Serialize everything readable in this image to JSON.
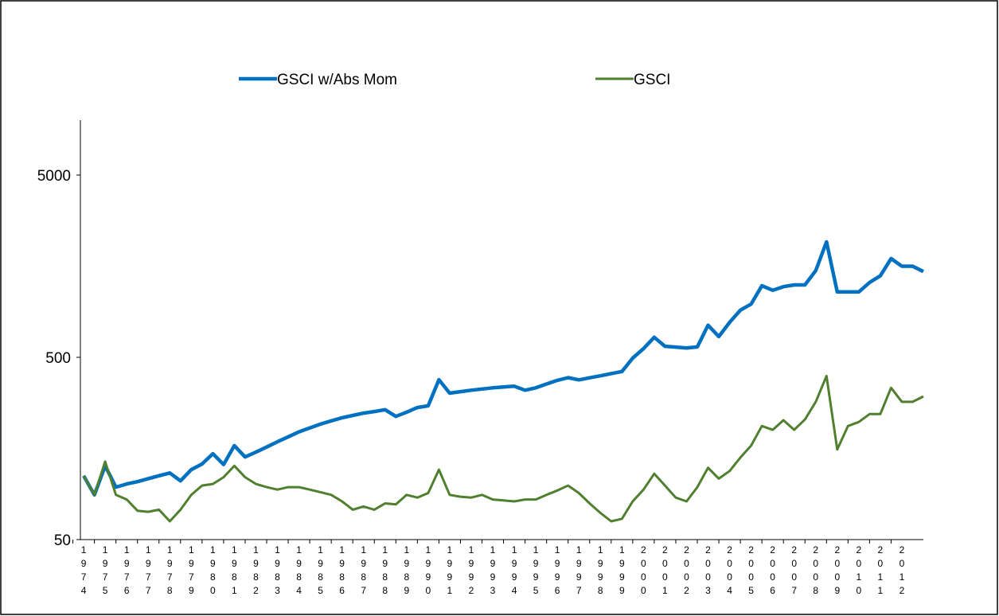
{
  "chart_data": {
    "type": "line",
    "log_scale": true,
    "grid": false,
    "legend": "top",
    "x": [
      1974,
      1974.5,
      1975,
      1975.5,
      1976,
      1976.5,
      1977,
      1977.5,
      1978,
      1978.5,
      1979,
      1979.5,
      1980,
      1980.5,
      1981,
      1981.5,
      1982,
      1982.5,
      1983,
      1983.5,
      1984,
      1984.5,
      1985,
      1985.5,
      1986,
      1986.5,
      1987,
      1987.5,
      1988,
      1988.5,
      1989,
      1989.5,
      1990,
      1990.5,
      1991,
      1991.5,
      1992,
      1992.5,
      1993,
      1993.5,
      1994,
      1994.5,
      1995,
      1995.5,
      1996,
      1996.5,
      1997,
      1997.5,
      1998,
      1998.5,
      1999,
      1999.5,
      2000,
      2000.5,
      2001,
      2001.5,
      2002,
      2002.5,
      2003,
      2003.5,
      2004,
      2004.5,
      2005,
      2005.5,
      2006,
      2006.5,
      2007,
      2007.5,
      2008,
      2008.5,
      2009,
      2009.5,
      2010,
      2010.5,
      2011,
      2011.5,
      2012,
      2012.5,
      2013
    ],
    "series": [
      {
        "name": "GSCI w/Abs Mom",
        "color": "#0070c0",
        "values": [
          112,
          88,
          127,
          97,
          101,
          104,
          108,
          112,
          116,
          105,
          121,
          130,
          148,
          129,
          164,
          142,
          151,
          161,
          172,
          183,
          195,
          205,
          215,
          224,
          233,
          240,
          247,
          252,
          258,
          237,
          250,
          265,
          271,
          377,
          318,
          324,
          330,
          335,
          340,
          344,
          347,
          330,
          340,
          357,
          374,
          387,
          376,
          386,
          396,
          407,
          418,
          495,
          558,
          644,
          575,
          569,
          563,
          570,
          750,
          650,
          778,
          907,
          979,
          1235,
          1167,
          1220,
          1248,
          1248,
          1495,
          2150,
          1142,
          1142,
          1142,
          1287,
          1400,
          1740,
          1580,
          1580,
          1478
        ]
      },
      {
        "name": "GSCI",
        "color": "#4f7f2f",
        "values": [
          112,
          88,
          134,
          88,
          83,
          72,
          71,
          73,
          63,
          73,
          88,
          99,
          101,
          110,
          127,
          110,
          101,
          97,
          94,
          97,
          97,
          94,
          91,
          88,
          81,
          73,
          76,
          73,
          79,
          78,
          88,
          85,
          90,
          121,
          88,
          86,
          85,
          88,
          83,
          82,
          81,
          83,
          83,
          88,
          93,
          99,
          90,
          79,
          70,
          63,
          65,
          81,
          94,
          115,
          99,
          85,
          81,
          97,
          124,
          108,
          119,
          141,
          164,
          210,
          200,
          226,
          200,
          228,
          285,
          395,
          156,
          210,
          221,
          244,
          244,
          340,
          285,
          285,
          305
        ]
      }
    ],
    "xlim": [
      1973.85,
      2013
    ],
    "xticks": [
      1974,
      1975,
      1976,
      1977,
      1978,
      1979,
      1980,
      1981,
      1982,
      1983,
      1984,
      1985,
      1986,
      1987,
      1988,
      1989,
      1990,
      1991,
      1992,
      1993,
      1994,
      1995,
      1996,
      1997,
      1998,
      1999,
      2000,
      2001,
      2002,
      2003,
      2004,
      2005,
      2006,
      2007,
      2008,
      2009,
      2010,
      2011,
      2012
    ],
    "ylim": [
      50,
      10000
    ],
    "yticks": [
      50,
      500,
      5000
    ]
  }
}
